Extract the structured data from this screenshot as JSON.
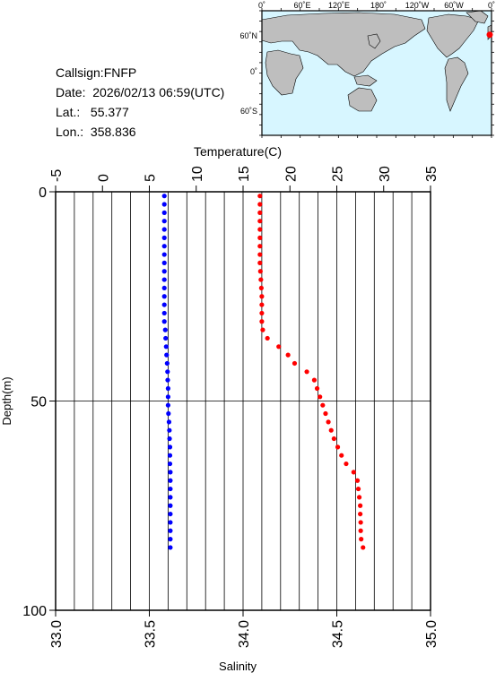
{
  "station": {
    "callsign_label": "Callsign:",
    "callsign": "FNFP",
    "date_label": "Date:",
    "date": "2026/02/13 06:59(UTC)",
    "lat_label": "Lat.:",
    "lat": "55.377",
    "lon_label": "Lon.:",
    "lon": "358.836"
  },
  "map": {
    "top_labels": [
      "0˚",
      "60˚E",
      "120˚E",
      "180˚",
      "120˚W",
      "60˚W",
      "0˚"
    ],
    "left_labels": [
      "60˚N",
      "0˚",
      "60˚S"
    ],
    "ocean_color": "#d7f6ff",
    "land_color": "#bebebe",
    "marker_color": "#ff0000"
  },
  "chart_data": {
    "type": "scatter",
    "ylabel": "Depth(m)",
    "ylim": [
      100,
      0
    ],
    "yticks": [
      0,
      50,
      100
    ],
    "top_axis": {
      "label": "Temperature(C)",
      "lim": [
        -5,
        35
      ],
      "ticks": [
        -5,
        0,
        5,
        10,
        15,
        20,
        25,
        30,
        35
      ]
    },
    "bottom_axis": {
      "label": "Salinity",
      "lim": [
        33.0,
        35.0
      ],
      "ticks": [
        "33.0",
        "33.5",
        "34.0",
        "34.5",
        "35.0"
      ]
    },
    "series": [
      {
        "axis": "salinity",
        "color": "#0000ff",
        "points": [
          [
            33.58,
            1
          ],
          [
            33.58,
            3
          ],
          [
            33.58,
            5
          ],
          [
            33.58,
            7
          ],
          [
            33.58,
            9
          ],
          [
            33.58,
            11
          ],
          [
            33.58,
            13
          ],
          [
            33.58,
            15
          ],
          [
            33.58,
            17
          ],
          [
            33.58,
            19
          ],
          [
            33.58,
            21
          ],
          [
            33.58,
            23
          ],
          [
            33.58,
            25
          ],
          [
            33.58,
            27
          ],
          [
            33.58,
            29
          ],
          [
            33.58,
            31
          ],
          [
            33.585,
            33
          ],
          [
            33.587,
            35
          ],
          [
            33.59,
            37
          ],
          [
            33.592,
            39
          ],
          [
            33.595,
            41
          ],
          [
            33.597,
            43
          ],
          [
            33.598,
            45
          ],
          [
            33.6,
            47
          ],
          [
            33.6,
            49
          ],
          [
            33.6,
            51
          ],
          [
            33.602,
            53
          ],
          [
            33.605,
            55
          ],
          [
            33.607,
            57
          ],
          [
            33.608,
            59
          ],
          [
            33.61,
            61
          ],
          [
            33.61,
            63
          ],
          [
            33.61,
            65
          ],
          [
            33.612,
            67
          ],
          [
            33.612,
            69
          ],
          [
            33.612,
            71
          ],
          [
            33.612,
            73
          ],
          [
            33.612,
            75
          ],
          [
            33.612,
            77
          ],
          [
            33.612,
            79
          ],
          [
            33.612,
            81
          ],
          [
            33.612,
            83
          ],
          [
            33.612,
            85
          ]
        ]
      },
      {
        "axis": "temperature",
        "color": "#ff0000",
        "points": [
          [
            16.8,
            1
          ],
          [
            16.8,
            3
          ],
          [
            16.8,
            5
          ],
          [
            16.8,
            7
          ],
          [
            16.8,
            9
          ],
          [
            16.8,
            11
          ],
          [
            16.8,
            13
          ],
          [
            16.8,
            15
          ],
          [
            16.8,
            17
          ],
          [
            16.85,
            19
          ],
          [
            16.9,
            21
          ],
          [
            16.95,
            23
          ],
          [
            17.0,
            25
          ],
          [
            17.0,
            27
          ],
          [
            17.0,
            29
          ],
          [
            17.0,
            31
          ],
          [
            17.1,
            33
          ],
          [
            17.6,
            35
          ],
          [
            18.8,
            37
          ],
          [
            19.8,
            39
          ],
          [
            20.5,
            41
          ],
          [
            21.8,
            43
          ],
          [
            22.6,
            45
          ],
          [
            22.9,
            47
          ],
          [
            23.2,
            49
          ],
          [
            23.5,
            51
          ],
          [
            23.8,
            53
          ],
          [
            24.1,
            55
          ],
          [
            24.4,
            57
          ],
          [
            24.7,
            59
          ],
          [
            25.1,
            61
          ],
          [
            25.5,
            63
          ],
          [
            26.0,
            65
          ],
          [
            26.8,
            67
          ],
          [
            27.2,
            69
          ],
          [
            27.3,
            71
          ],
          [
            27.4,
            73
          ],
          [
            27.5,
            75
          ],
          [
            27.5,
            77
          ],
          [
            27.55,
            79
          ],
          [
            27.55,
            81
          ],
          [
            27.6,
            83
          ],
          [
            27.8,
            85
          ]
        ]
      }
    ]
  }
}
